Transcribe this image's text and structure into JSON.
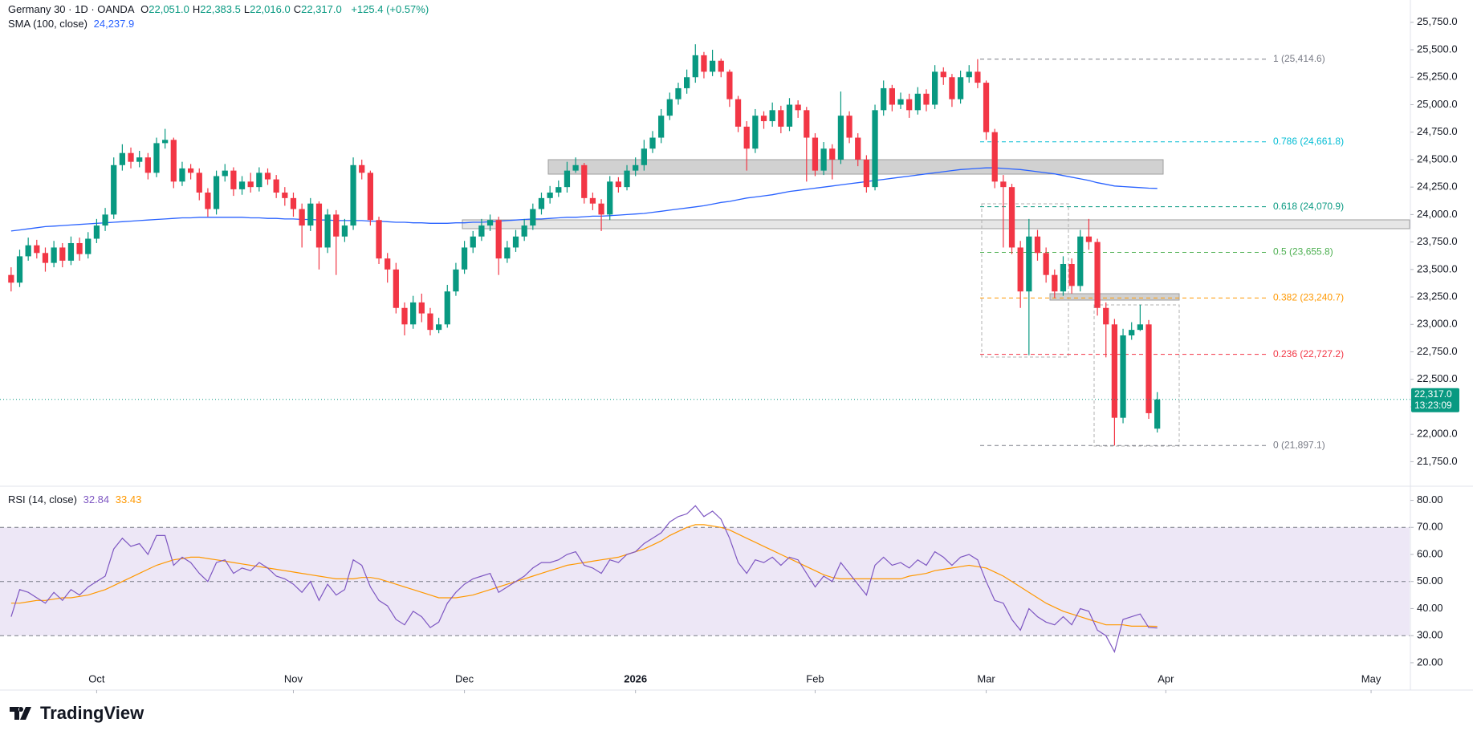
{
  "header": {
    "symbol": "Germany 30 · 1D · OANDA",
    "ohlc": [
      {
        "key": "O",
        "label": "22,051.0"
      },
      {
        "key": "H",
        "label": "22,383.5"
      },
      {
        "key": "L",
        "label": "22,016.0"
      },
      {
        "key": "C",
        "label": "22,317.0"
      }
    ],
    "change": "+125.4 (+0.57%)"
  },
  "branding": "TradingView",
  "chart_data": [
    {
      "type": "candlestick",
      "up_color": "#089981",
      "down_color": "#f23645",
      "open": [
        23450,
        23380,
        23620,
        23720,
        23650,
        23560,
        23700,
        23580,
        23740,
        23640,
        23780,
        23900,
        24000,
        24450,
        24560,
        24480,
        24520,
        24380,
        24650,
        24680,
        24300,
        24420,
        24380,
        24200,
        24050,
        24350,
        24400,
        24230,
        24300,
        24250,
        24380,
        24320,
        24200,
        24150,
        24050,
        23900,
        24100,
        23700,
        24000,
        23800,
        23900,
        24450,
        24380,
        23950,
        23600,
        23500,
        23150,
        23000,
        23200,
        23100,
        22950,
        23000,
        23300,
        23500,
        23700,
        23800,
        23900,
        23950,
        23600,
        23700,
        23800,
        23900,
        24050,
        24150,
        24200,
        24250,
        24400,
        24450,
        24150,
        24100,
        24000,
        24300,
        24250,
        24400,
        24450,
        24600,
        24700,
        24900,
        25050,
        25150,
        25250,
        25450,
        25300,
        25400,
        25300,
        25050,
        24800,
        24600,
        24900,
        24850,
        24950,
        24800,
        25000,
        24950,
        24700,
        24400,
        24600,
        24500,
        24900,
        24700,
        24500,
        24250,
        24950,
        25150,
        25000,
        25050,
        24950,
        25100,
        25000,
        25300,
        25250,
        25050,
        25250,
        25300,
        25200,
        24750,
        24300,
        24250,
        23700,
        23300,
        23800,
        23650,
        23450,
        23300,
        23550,
        23350,
        23800,
        23750,
        23150,
        23000,
        22150,
        22900,
        22950,
        23000,
        22051
      ],
      "high": [
        23520,
        23680,
        23790,
        23770,
        23700,
        23760,
        23740,
        23800,
        23790,
        23840,
        23960,
        24060,
        24520,
        24640,
        24610,
        24580,
        24560,
        24700,
        24780,
        24700,
        24480,
        24460,
        24420,
        24240,
        24400,
        24460,
        24430,
        24350,
        24380,
        24430,
        24420,
        24360,
        24250,
        24200,
        24100,
        24150,
        24120,
        24050,
        24040,
        23960,
        24520,
        24500,
        24400,
        23980,
        23650,
        23560,
        23200,
        23260,
        23280,
        23150,
        23060,
        23360,
        23560,
        23760,
        23850,
        23960,
        24000,
        23980,
        23760,
        23860,
        23960,
        24100,
        24200,
        24260,
        24310,
        24480,
        24520,
        24470,
        24200,
        24140,
        24350,
        24340,
        24450,
        24520,
        24680,
        24760,
        24960,
        25110,
        25200,
        25320,
        25550,
        25480,
        25500,
        25420,
        25320,
        25080,
        24850,
        24960,
        24940,
        25020,
        24990,
        25060,
        25040,
        24980,
        24740,
        24660,
        24640,
        25120,
        24940,
        24740,
        24540,
        25000,
        25220,
        25180,
        25110,
        25100,
        25160,
        25140,
        25360,
        25340,
        25280,
        25310,
        25360,
        25414.6,
        25220,
        24780,
        24360,
        24280,
        23760,
        23960,
        23860,
        23700,
        23500,
        23620,
        23600,
        23860,
        23960,
        23780,
        23200,
        23050,
        22960,
        23020,
        23180,
        23040,
        22383.5
      ],
      "low": [
        23300,
        23340,
        23580,
        23600,
        23480,
        23520,
        23520,
        23540,
        23580,
        23600,
        23740,
        23850,
        23960,
        24400,
        24420,
        24430,
        24320,
        24340,
        24600,
        24240,
        24260,
        24320,
        24130,
        23980,
        24000,
        24300,
        24170,
        24180,
        24200,
        24210,
        24270,
        24150,
        24080,
        23980,
        23700,
        23850,
        23500,
        23650,
        23450,
        23750,
        23860,
        24320,
        23900,
        23550,
        23380,
        23100,
        22900,
        22960,
        23020,
        22900,
        22920,
        22970,
        23260,
        23460,
        23650,
        23760,
        23850,
        23450,
        23560,
        23660,
        23760,
        23860,
        24000,
        24100,
        24160,
        24200,
        24380,
        24100,
        24040,
        23850,
        23950,
        24200,
        24220,
        24350,
        24400,
        24560,
        24650,
        24860,
        25000,
        25100,
        25200,
        25240,
        25260,
        25250,
        24980,
        24750,
        24400,
        24560,
        24780,
        24800,
        24740,
        24760,
        24880,
        24300,
        24350,
        24360,
        24320,
        24460,
        24650,
        24440,
        24200,
        24220,
        24900,
        24940,
        24960,
        24880,
        24910,
        24940,
        24960,
        25180,
        24980,
        25010,
        25200,
        25150,
        24680,
        24240,
        23700,
        23640,
        23150,
        22720,
        23580,
        23380,
        23240,
        23260,
        23280,
        23300,
        23680,
        23080,
        22700,
        21897.1,
        22100,
        22860,
        22940,
        22140,
        22016
      ],
      "close": [
        23380,
        23620,
        23720,
        23650,
        23560,
        23700,
        23580,
        23740,
        23640,
        23780,
        23900,
        24000,
        24450,
        24560,
        24480,
        24520,
        24380,
        24650,
        24680,
        24300,
        24420,
        24380,
        24200,
        24050,
        24350,
        24400,
        24230,
        24300,
        24250,
        24380,
        24320,
        24200,
        24150,
        24050,
        23900,
        24100,
        23700,
        24000,
        23800,
        23900,
        24450,
        24380,
        23950,
        23600,
        23500,
        23150,
        23000,
        23200,
        23100,
        22950,
        23000,
        23300,
        23500,
        23700,
        23800,
        23900,
        23950,
        23600,
        23700,
        23800,
        23900,
        24050,
        24150,
        24200,
        24250,
        24400,
        24450,
        24150,
        24100,
        24000,
        24300,
        24250,
        24400,
        24450,
        24600,
        24700,
        24900,
        25050,
        25150,
        25250,
        25450,
        25300,
        25400,
        25300,
        25050,
        24800,
        24600,
        24900,
        24850,
        24950,
        24800,
        25000,
        24950,
        24700,
        24400,
        24600,
        24500,
        24900,
        24700,
        24500,
        24250,
        24950,
        25150,
        25000,
        25050,
        24950,
        25100,
        25000,
        25300,
        25250,
        25050,
        25250,
        25300,
        25200,
        24750,
        24300,
        24250,
        23700,
        23300,
        23800,
        23650,
        23450,
        23300,
        23550,
        23350,
        23800,
        23750,
        23150,
        23000,
        22150,
        22900,
        22950,
        23000,
        22192,
        22317
      ],
      "sma": {
        "name": "SMA (100, close)",
        "last_label": "24,237.9",
        "color": "#2962ff",
        "values": [
          23850,
          23860,
          23870,
          23880,
          23890,
          23895,
          23900,
          23905,
          23910,
          23915,
          23920,
          23925,
          23930,
          23935,
          23940,
          23945,
          23950,
          23955,
          23960,
          23965,
          23970,
          23970,
          23975,
          23975,
          23975,
          23975,
          23975,
          23975,
          23970,
          23970,
          23965,
          23965,
          23960,
          23960,
          23955,
          23955,
          23950,
          23950,
          23945,
          23945,
          23945,
          23945,
          23940,
          23940,
          23935,
          23930,
          23930,
          23925,
          23925,
          23920,
          23920,
          23920,
          23925,
          23925,
          23930,
          23930,
          23935,
          23940,
          23945,
          23950,
          23955,
          23960,
          23960,
          23965,
          23970,
          23975,
          23975,
          23980,
          23985,
          23985,
          23990,
          23995,
          24000,
          24005,
          24010,
          24020,
          24030,
          24040,
          24050,
          24060,
          24070,
          24080,
          24095,
          24110,
          24120,
          24135,
          24150,
          24160,
          24170,
          24180,
          24195,
          24210,
          24220,
          24230,
          24240,
          24250,
          24260,
          24270,
          24280,
          24290,
          24300,
          24310,
          24320,
          24330,
          24340,
          24350,
          24360,
          24370,
          24380,
          24390,
          24400,
          24410,
          24415,
          24420,
          24425,
          24425,
          24420,
          24415,
          24410,
          24400,
          24390,
          24380,
          24370,
          24355,
          24340,
          24325,
          24310,
          24290,
          24275,
          24260,
          24255,
          24250,
          24245,
          24240,
          24237.9
        ]
      },
      "fib": [
        {
          "price": 25414.6,
          "label": "1 (25,414.6)",
          "color": "#787b86"
        },
        {
          "price": 24661.8,
          "label": "0.786 (24,661.8)",
          "color": "#00bcd4"
        },
        {
          "price": 24070.9,
          "label": "0.618 (24,070.9)",
          "color": "#089981"
        },
        {
          "price": 23655.8,
          "label": "0.5 (23,655.8)",
          "color": "#4caf50"
        },
        {
          "price": 23240.7,
          "label": "0.382 (23,240.7)",
          "color": "#ff9800"
        },
        {
          "price": 22727.2,
          "label": "0.236 (22,727.2)",
          "color": "#f23645"
        },
        {
          "price": 21897.1,
          "label": "0 (21,897.1)",
          "color": "#787b86"
        }
      ],
      "last_price": {
        "value": 22317,
        "label": "22,317.0",
        "countdown": "13:23:09",
        "color": "#089981"
      },
      "xlim": [
        -1.3,
        163.5
      ],
      "xticks": [
        {
          "value": 10,
          "label": "Oct"
        },
        {
          "value": 33,
          "label": "Nov"
        },
        {
          "value": 53,
          "label": "Dec"
        },
        {
          "value": 73,
          "label": "2026",
          "bold": true
        },
        {
          "value": 94,
          "label": "Feb"
        },
        {
          "value": 114,
          "label": "Mar"
        },
        {
          "value": 135,
          "label": "Apr"
        },
        {
          "value": 159,
          "label": "May"
        }
      ],
      "ylim": [
        21534,
        25953
      ],
      "yticks": [
        {
          "value": 21750,
          "label": "21,750.0"
        },
        {
          "value": 22000,
          "label": "22,000.0"
        },
        {
          "value": 22250,
          "label": "22,250.0"
        },
        {
          "value": 22500,
          "label": "22,500.0"
        },
        {
          "value": 22750,
          "label": "22,750.0"
        },
        {
          "value": 23000,
          "label": "23,000.0"
        },
        {
          "value": 23250,
          "label": "23,250.0"
        },
        {
          "value": 23500,
          "label": "23,500.0"
        },
        {
          "value": 23750,
          "label": "23,750.0"
        },
        {
          "value": 24000,
          "label": "24,000.0"
        },
        {
          "value": 24250,
          "label": "24,250.0"
        },
        {
          "value": 24500,
          "label": "24,500.0"
        },
        {
          "value": 24750,
          "label": "24,750.0"
        },
        {
          "value": 25000,
          "label": "25,000.0"
        },
        {
          "value": 25250,
          "label": "25,250.0"
        },
        {
          "value": 25500,
          "label": "25,500.0"
        },
        {
          "value": 25750,
          "label": "25,750.0"
        }
      ]
    },
    {
      "type": "line",
      "xlim": [
        -1.3,
        163.5
      ],
      "ylim": [
        9.9,
        84.9
      ],
      "yticks": [
        {
          "value": 20,
          "label": "20.00"
        },
        {
          "value": 30,
          "label": "30.00"
        },
        {
          "value": 40,
          "label": "40.00"
        },
        {
          "value": 50,
          "label": "50.00"
        },
        {
          "value": 60,
          "label": "60.00"
        },
        {
          "value": 70,
          "label": "70.00"
        },
        {
          "value": 80,
          "label": "80.00"
        }
      ],
      "levels": [
        70,
        50,
        30
      ],
      "band_color": "#ede7f6",
      "series": [
        {
          "name": "RSI (14, close)",
          "last_label": "32.84",
          "color": "#7e57c2",
          "values": [
            37,
            47,
            46,
            44,
            42,
            46,
            43,
            47,
            45,
            48,
            50,
            52,
            62,
            66,
            63,
            64,
            60,
            67,
            67,
            56,
            59,
            57,
            53,
            50,
            57,
            58,
            53,
            55,
            54,
            57,
            55,
            52,
            51,
            49,
            46,
            50,
            43,
            49,
            45,
            47,
            58,
            56,
            48,
            43,
            41,
            36,
            34,
            39,
            37,
            33,
            35,
            42,
            46,
            49,
            51,
            52,
            53,
            46,
            48,
            50,
            52,
            55,
            57,
            57,
            58,
            60,
            61,
            56,
            55,
            53,
            58,
            57,
            60,
            61,
            64,
            66,
            68,
            72,
            74,
            75,
            78,
            74,
            76,
            73,
            66,
            57,
            53,
            58,
            57,
            59,
            56,
            59,
            58,
            53,
            48,
            52,
            50,
            57,
            53,
            49,
            45,
            56,
            59,
            56,
            57,
            55,
            58,
            56,
            61,
            59,
            56,
            59,
            60,
            58,
            50,
            43,
            42,
            36,
            32,
            40,
            37,
            35,
            34,
            37,
            34,
            40,
            39,
            32,
            30,
            24,
            36,
            37,
            38,
            33,
            32.84
          ]
        },
        {
          "last_label": "33.43",
          "color": "#ff9800",
          "values": [
            42,
            42,
            42.5,
            43,
            43,
            43.5,
            44,
            44,
            44.5,
            45,
            46,
            47,
            48.5,
            50,
            51.5,
            53,
            54.5,
            56,
            57,
            58,
            58.5,
            59,
            59,
            58.5,
            58,
            57.5,
            57,
            56.5,
            56,
            55.5,
            55,
            54.5,
            54,
            53.5,
            53,
            52.5,
            52,
            51.5,
            51,
            51,
            51,
            51.5,
            51.5,
            51,
            50,
            49,
            48,
            47,
            46,
            45,
            44,
            44,
            44,
            44.5,
            45,
            46,
            47,
            48,
            49,
            50,
            51,
            52,
            53,
            54,
            55,
            56,
            56.5,
            57,
            57.5,
            58,
            58.5,
            59,
            60,
            61,
            62,
            63.5,
            65,
            67,
            68.5,
            70,
            71,
            71,
            70.5,
            70,
            69,
            67.5,
            66,
            64.5,
            63,
            61.5,
            60,
            58.5,
            57,
            55.5,
            54,
            52.5,
            51.5,
            51,
            51,
            51,
            51,
            51,
            51,
            51,
            51,
            52,
            52.5,
            53,
            54,
            54.5,
            55,
            55.5,
            56,
            55.5,
            55,
            53.5,
            52,
            50,
            48,
            46,
            44,
            42,
            40.5,
            39,
            38,
            37,
            36,
            35,
            34,
            34,
            34,
            33.5,
            33.5,
            33.5,
            33.43
          ]
        }
      ]
    }
  ]
}
